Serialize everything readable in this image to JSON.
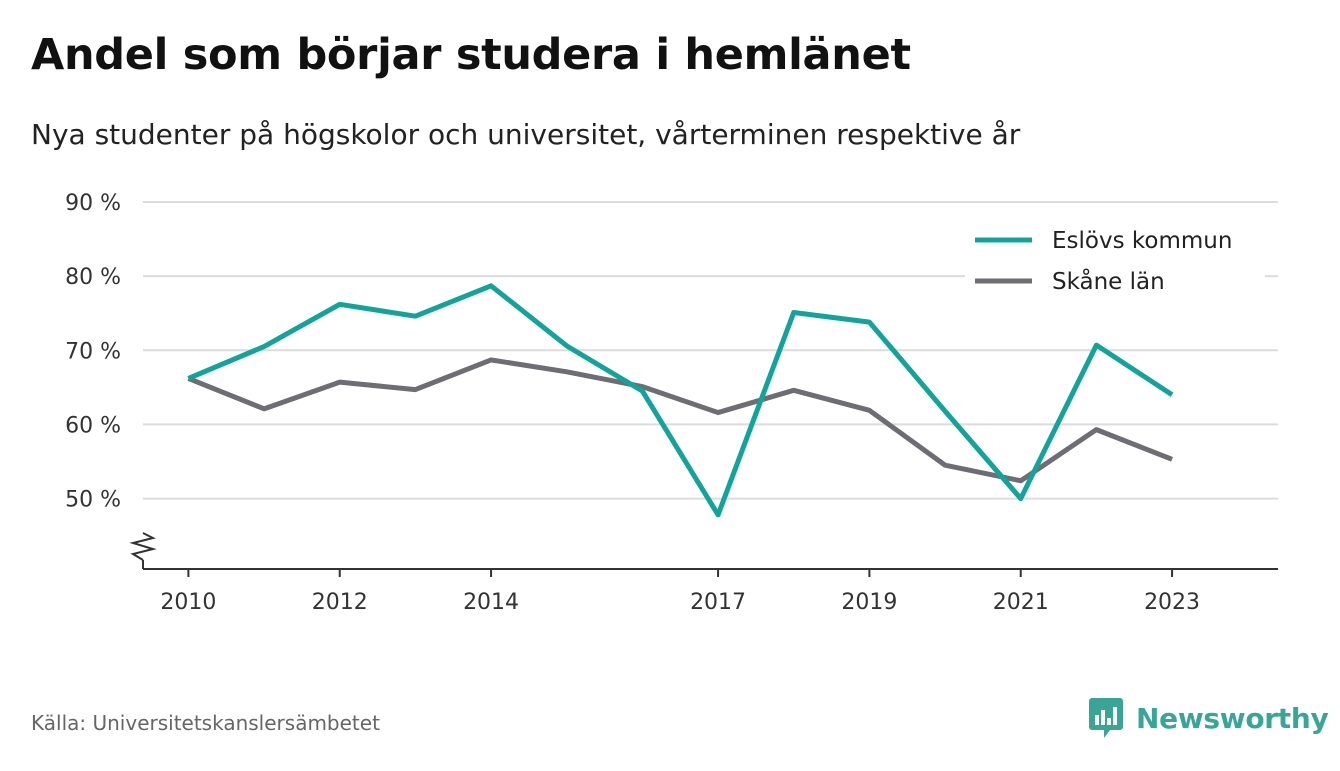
{
  "title": "Andel som börjar studera i hemlänet",
  "subtitle": "Nya studenter på högskolor och universitet, vårterminen respektive år",
  "source": "Källa: Universitetskanslersämbetet",
  "brand": "Newsworthy",
  "colors": {
    "eslov": "#14a39a",
    "skane": "#6e6d73",
    "grid": "#dcdcdc",
    "axis": "#333333",
    "brand": "#3aa597"
  },
  "chart_data": {
    "type": "line",
    "x": [
      2010,
      2011,
      2012,
      2013,
      2014,
      2015,
      2016,
      2017,
      2018,
      2019,
      2020,
      2021,
      2022,
      2023
    ],
    "series": [
      {
        "name": "Eslövs kommun",
        "values": [
          66.2,
          70.5,
          76.2,
          74.6,
          78.7,
          70.6,
          64.5,
          47.8,
          75.1,
          73.8,
          61.8,
          50.0,
          70.7,
          64.0
        ]
      },
      {
        "name": "Skåne län",
        "values": [
          66.2,
          62.1,
          65.7,
          64.7,
          68.7,
          67.1,
          65.1,
          61.6,
          64.6,
          61.9,
          54.5,
          52.4,
          59.3,
          55.3
        ]
      }
    ],
    "y_ticks": [
      "90 %",
      "80 %",
      "70 %",
      "60 %",
      "50 %"
    ],
    "y_tick_values": [
      90,
      80,
      70,
      60,
      50
    ],
    "x_ticks": [
      "2010",
      "2012",
      "2014",
      "2017",
      "2019",
      "2021",
      "2023"
    ],
    "x_tick_values": [
      2010,
      2012,
      2014,
      2017,
      2019,
      2021,
      2023
    ],
    "ylim": [
      40.5,
      90
    ],
    "xlim": [
      2009.4,
      2024.4
    ],
    "axis_break": true,
    "grid": true,
    "legend_position": "top-right"
  }
}
